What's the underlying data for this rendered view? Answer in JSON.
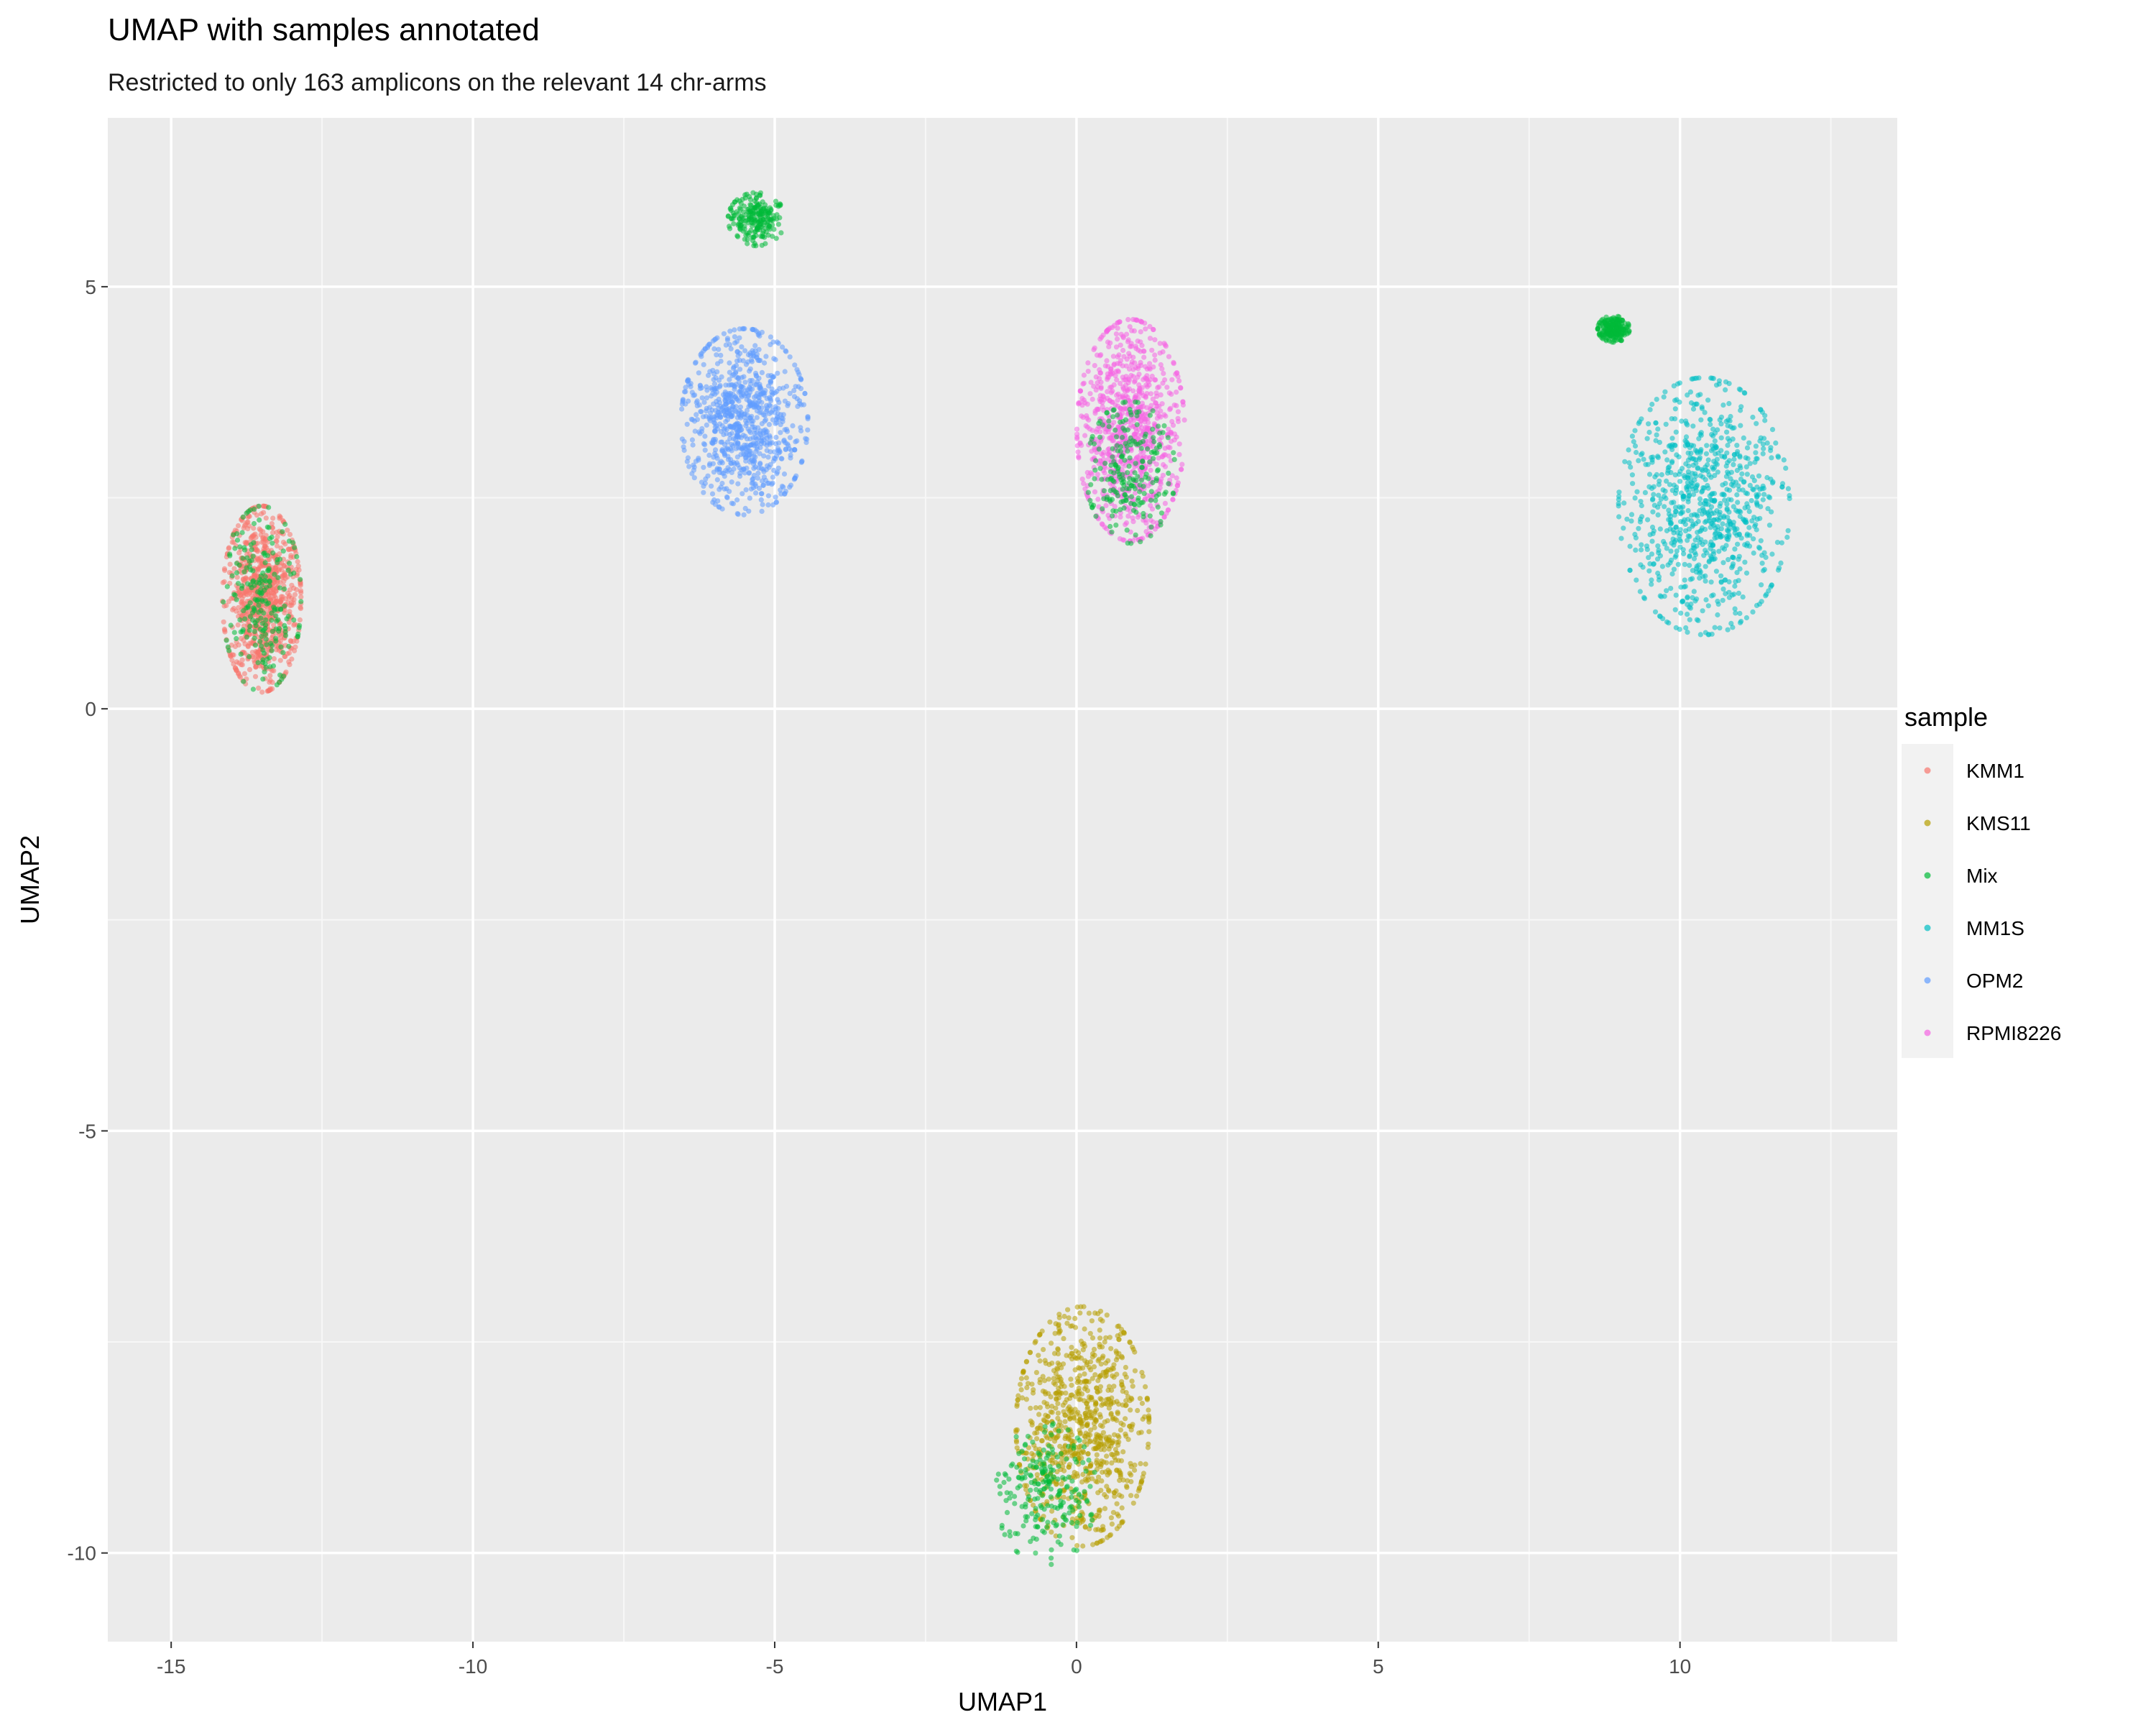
{
  "chart_data": {
    "type": "scatter",
    "title": "UMAP with samples annotated",
    "subtitle": "Restricted to only 163 amplicons on the relevant 14 chr-arms",
    "xlabel": "UMAP1",
    "ylabel": "UMAP2",
    "xlim": [
      -16.05,
      13.6
    ],
    "ylim": [
      -11.05,
      7.0
    ],
    "x_ticks": [
      -15,
      -10,
      -5,
      0,
      5,
      10
    ],
    "x_tick_labels": [
      "-15",
      "-10",
      "-5",
      "0",
      "5",
      "10"
    ],
    "y_ticks": [
      -10,
      -5,
      0,
      5
    ],
    "y_tick_labels": [
      "-10",
      "-5",
      "0",
      "5"
    ],
    "grid": true,
    "legend": {
      "title": "sample",
      "position": "right",
      "entries": [
        "KMM1",
        "KMS11",
        "Mix",
        "MM1S",
        "OPM2",
        "RPMI8226"
      ]
    },
    "colors": {
      "KMM1": "#F8766D",
      "KMS11": "#B79F00",
      "Mix": "#00BA38",
      "MM1S": "#00BFC4",
      "OPM2": "#619CFF",
      "RPMI8226": "#F564E3"
    },
    "clusters": [
      {
        "sample": "KMM1",
        "center": [
          -13.5,
          1.3
        ],
        "spread": [
          0.62,
          1.05
        ]
      },
      {
        "sample": "Mix",
        "center": [
          -13.5,
          1.3
        ],
        "spread": [
          0.62,
          1.05
        ]
      },
      {
        "sample": "OPM2",
        "center": [
          -5.5,
          3.4
        ],
        "spread": [
          1.0,
          1.05
        ]
      },
      {
        "sample": "Mix",
        "center": [
          -5.3,
          5.8
        ],
        "spread": [
          0.45,
          0.3
        ]
      },
      {
        "sample": "RPMI8226",
        "center": [
          0.9,
          3.3
        ],
        "spread": [
          0.85,
          1.25
        ]
      },
      {
        "sample": "Mix",
        "center": [
          0.9,
          2.8
        ],
        "spread": [
          0.7,
          0.8
        ]
      },
      {
        "sample": "MM1S",
        "center": [
          10.4,
          2.4
        ],
        "spread": [
          1.35,
          1.45
        ]
      },
      {
        "sample": "Mix",
        "center": [
          8.9,
          4.5
        ],
        "spread": [
          0.25,
          0.15
        ]
      },
      {
        "sample": "KMS11",
        "center": [
          0.1,
          -8.5
        ],
        "spread": [
          1.05,
          1.35
        ]
      },
      {
        "sample": "Mix",
        "center": [
          -0.5,
          -9.3
        ],
        "spread": [
          0.8,
          0.8
        ]
      }
    ]
  }
}
